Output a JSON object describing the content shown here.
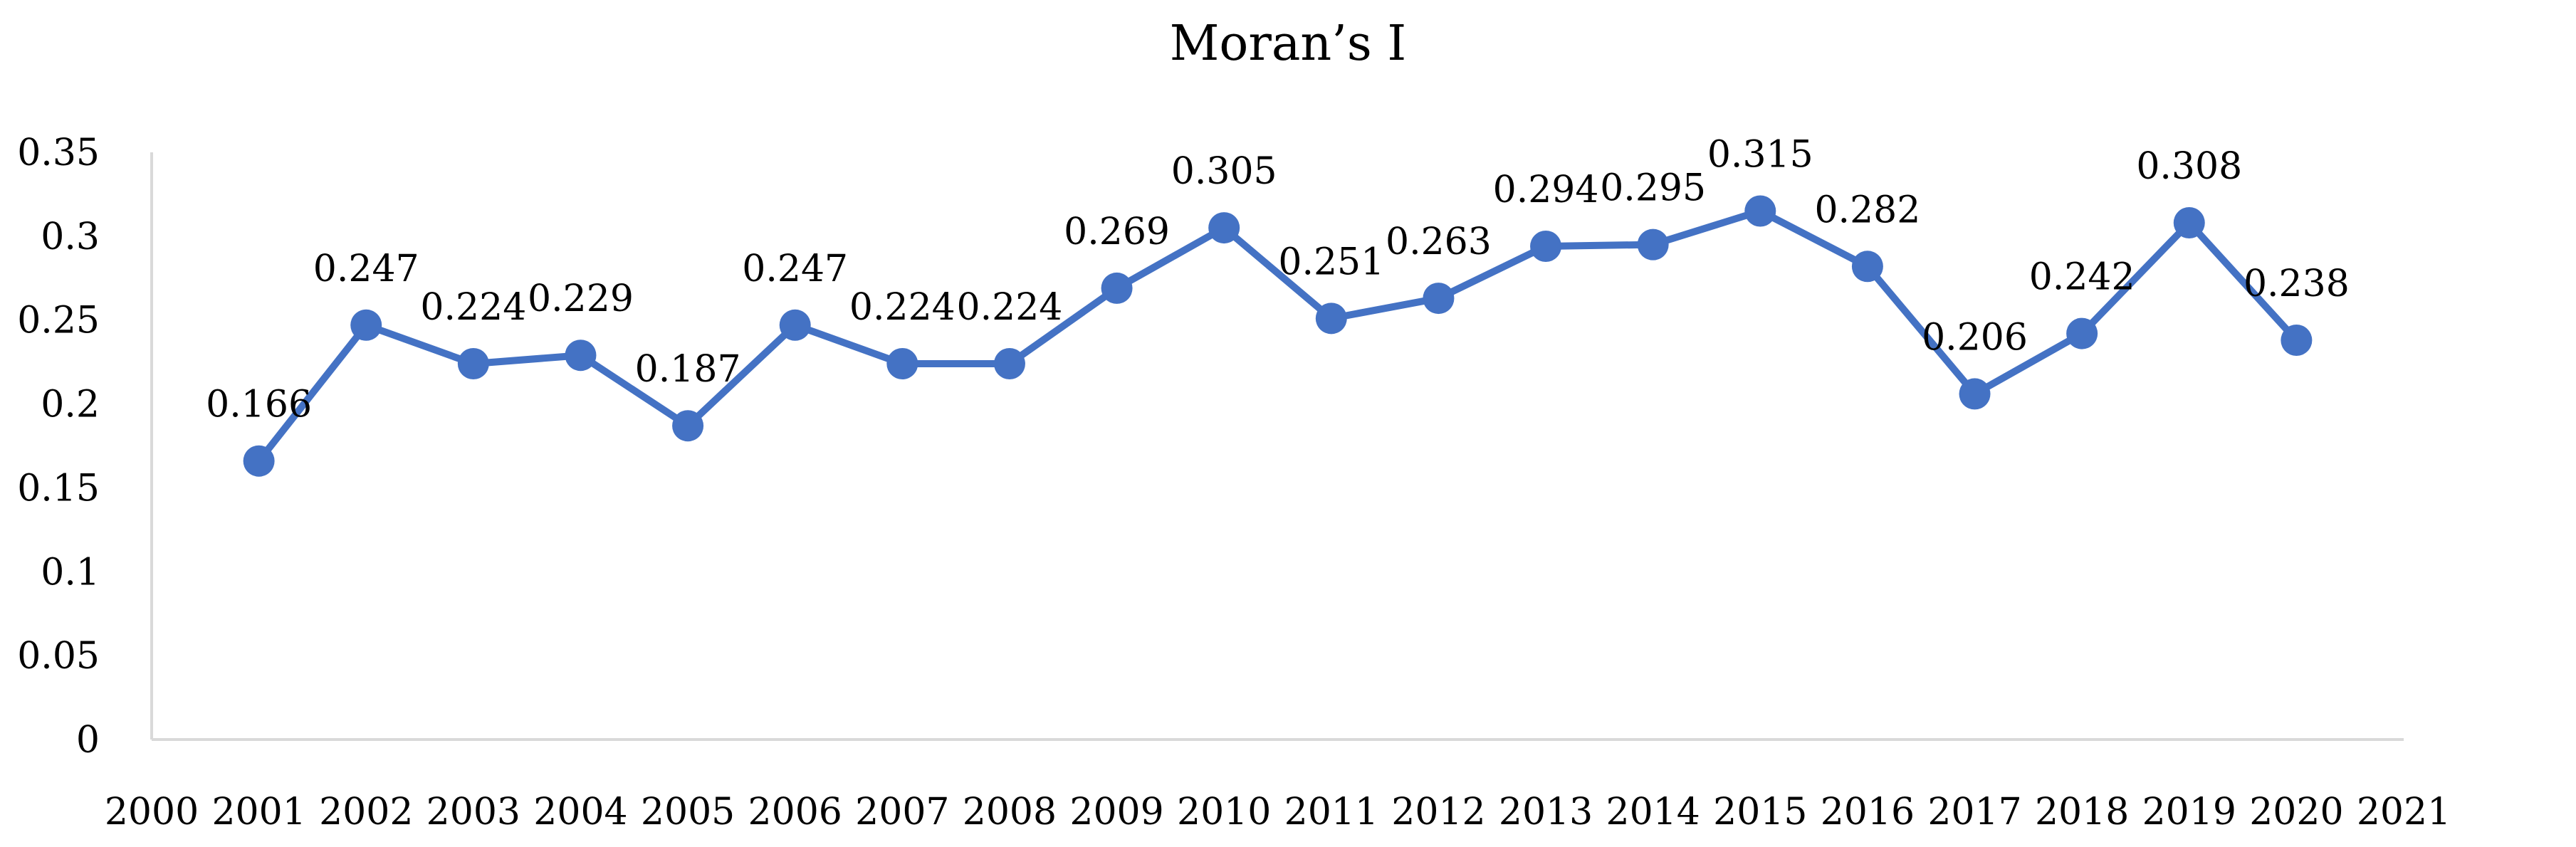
{
  "chart_data": {
    "type": "line",
    "title": "Moran’s I",
    "xlabel": "",
    "ylabel": "",
    "x_ticks": [
      "2000",
      "2001",
      "2002",
      "2003",
      "2004",
      "2005",
      "2006",
      "2007",
      "2008",
      "2009",
      "2010",
      "2011",
      "2012",
      "2013",
      "2014",
      "2015",
      "2016",
      "2017",
      "2018",
      "2019",
      "2020",
      "2021"
    ],
    "y_ticks": [
      "0",
      "0.05",
      "0.1",
      "0.15",
      "0.2",
      "0.25",
      "0.3",
      "0.35"
    ],
    "xlim": [
      2000,
      2021
    ],
    "ylim": [
      0,
      0.35
    ],
    "grid": false,
    "legend": "none",
    "series": [
      {
        "color": "#4472c4",
        "x": [
          2001,
          2002,
          2003,
          2004,
          2005,
          2006,
          2007,
          2008,
          2009,
          2010,
          2011,
          2012,
          2013,
          2014,
          2015,
          2016,
          2017,
          2018,
          2019,
          2020
        ],
        "values": [
          0.166,
          0.247,
          0.224,
          0.229,
          0.187,
          0.247,
          0.224,
          0.224,
          0.269,
          0.305,
          0.251,
          0.263,
          0.294,
          0.295,
          0.315,
          0.282,
          0.206,
          0.242,
          0.308,
          0.238
        ],
        "labels": [
          "0.166",
          "0.247",
          "0.224",
          "0.229",
          "0.187",
          "0.247",
          "0.224",
          "0.224",
          "0.269",
          "0.305",
          "0.251",
          "0.263",
          "0.294",
          "0.295",
          "0.315",
          "0.282",
          "0.206",
          "0.242",
          "0.308",
          "0.238"
        ]
      }
    ]
  }
}
